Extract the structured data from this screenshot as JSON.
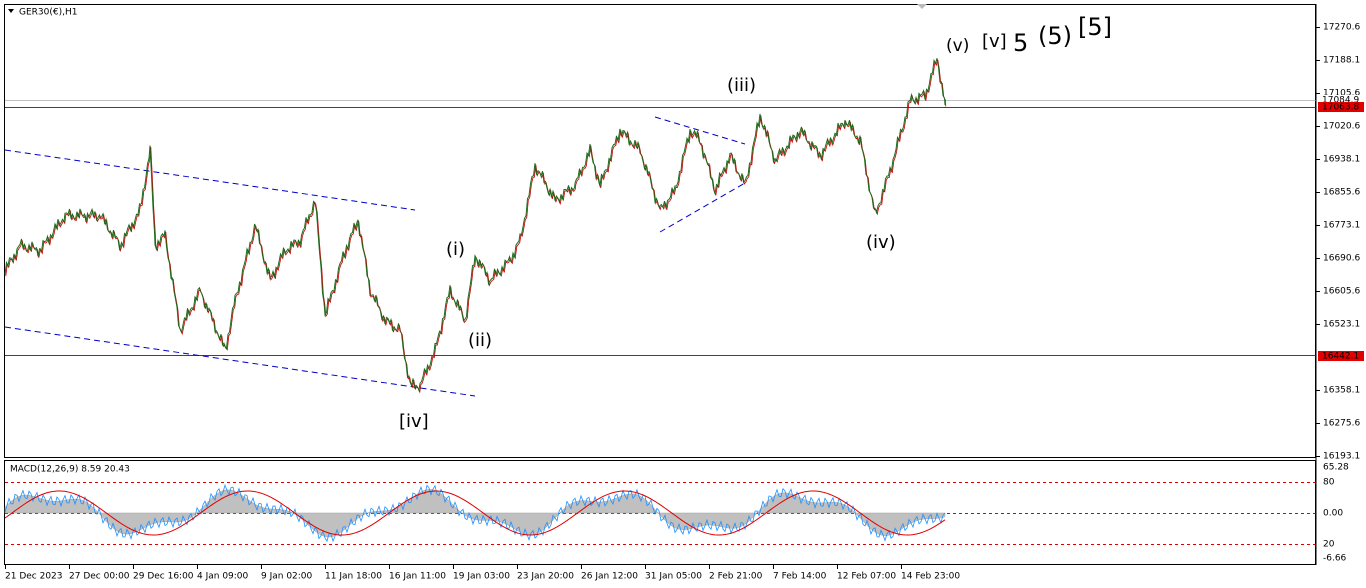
{
  "header": {
    "title": "GER30(€),H1"
  },
  "price_axis": {
    "labels": [
      "17270.6",
      "17188.1",
      "17105.6",
      "17020.6",
      "16938.1",
      "16855.6",
      "16773.1",
      "16690.6",
      "16605.6",
      "16523.1",
      "16358.1",
      "16275.6",
      "16193.1"
    ]
  },
  "price_markers": {
    "bid": "17084.9",
    "upper_level": "17063.8",
    "lower_level": "16442.1"
  },
  "time_axis": [
    "21 Dec 2023",
    "27 Dec 00:00",
    "29 Dec 16:00",
    "4 Jan 09:00",
    "9 Jan 02:00",
    "11 Jan 18:00",
    "16 Jan 11:00",
    "19 Jan 03:00",
    "23 Jan 20:00",
    "26 Jan 12:00",
    "31 Jan 05:00",
    "2 Feb 21:00",
    "7 Feb 14:00",
    "12 Feb 07:00",
    "14 Feb 23:00"
  ],
  "wave_labels": [
    "(v)",
    "[v]",
    "5",
    "(5)",
    "[5]",
    "(iii)",
    "(i)",
    "(ii)",
    "[iv]",
    "(iv)"
  ],
  "indicator": {
    "label": "MACD(12,26,9) 8.59 20.43",
    "axis_labels": [
      "65.28",
      "80",
      "0.00",
      "20",
      "-6.66"
    ]
  }
}
